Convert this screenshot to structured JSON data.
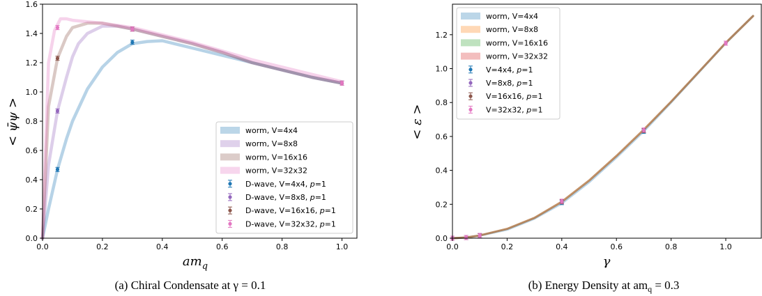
{
  "captions": {
    "a": "(a) Chiral Condensate at γ = 0.1",
    "b": "(b) Energy Density at am",
    "b_sub": "q",
    "b_tail": " = 0.3"
  },
  "chart_data": [
    {
      "type": "line",
      "xlabel": "am",
      "xlabel_sub": "q",
      "ylabel": "< ψ̄ψ >",
      "xlim": [
        0,
        1.05
      ],
      "ylim": [
        0,
        1.6
      ],
      "xticks": [
        "0.0",
        "0.2",
        "0.4",
        "0.6",
        "0.8",
        "1.0"
      ],
      "yticks": [
        "0.0",
        "0.2",
        "0.4",
        "0.6",
        "0.8",
        "1.0",
        "1.2",
        "1.4",
        "1.6"
      ],
      "legend_position": "lower-right",
      "series": [
        {
          "name": "worm, V=4x4",
          "color": "#1f77b4",
          "x": [
            0,
            0.02,
            0.05,
            0.08,
            0.1,
            0.15,
            0.2,
            0.25,
            0.3,
            0.35,
            0.4,
            0.5,
            0.6,
            0.7,
            0.8,
            0.9,
            1.0
          ],
          "y": [
            0,
            0.2,
            0.47,
            0.68,
            0.8,
            1.02,
            1.17,
            1.27,
            1.33,
            1.345,
            1.35,
            1.3,
            1.25,
            1.2,
            1.15,
            1.1,
            1.06
          ]
        },
        {
          "name": "worm, V=8x8",
          "color": "#9467bd",
          "x": [
            0,
            0.02,
            0.05,
            0.08,
            0.1,
            0.12,
            0.15,
            0.2,
            0.25,
            0.3,
            0.4,
            0.5,
            0.6,
            0.7,
            0.8,
            0.9,
            1.0
          ],
          "y": [
            0,
            0.5,
            0.87,
            1.1,
            1.24,
            1.33,
            1.4,
            1.45,
            1.45,
            1.43,
            1.38,
            1.33,
            1.27,
            1.2,
            1.15,
            1.1,
            1.06
          ]
        },
        {
          "name": "worm, V=16x16",
          "color": "#8c564b",
          "x": [
            0,
            0.02,
            0.05,
            0.08,
            0.1,
            0.15,
            0.2,
            0.3,
            0.4,
            0.5,
            0.6,
            0.7,
            0.8,
            0.9,
            1.0
          ],
          "y": [
            0,
            0.9,
            1.23,
            1.38,
            1.44,
            1.47,
            1.47,
            1.43,
            1.38,
            1.33,
            1.27,
            1.2,
            1.15,
            1.1,
            1.06
          ]
        },
        {
          "name": "worm, V=32x32",
          "color": "#e377c2",
          "x": [
            0,
            0.02,
            0.04,
            0.06,
            0.08,
            0.1,
            0.15,
            0.2,
            0.3,
            0.4,
            0.5,
            0.6,
            0.7,
            0.8,
            0.9,
            1.0
          ],
          "y": [
            0,
            1.2,
            1.42,
            1.5,
            1.5,
            1.49,
            1.48,
            1.47,
            1.44,
            1.39,
            1.34,
            1.28,
            1.22,
            1.17,
            1.12,
            1.07
          ]
        }
      ],
      "points": [
        {
          "name": "D-wave, V=4x4, p=1",
          "color": "#1f77b4",
          "marker": "circle",
          "data": [
            [
              0.05,
              0.47
            ],
            [
              0.3,
              1.34
            ],
            [
              1.0,
              1.06
            ]
          ]
        },
        {
          "name": "D-wave, V=8x8, p=1",
          "color": "#9467bd",
          "marker": "circle",
          "data": [
            [
              0.05,
              0.87
            ],
            [
              0.3,
              1.43
            ],
            [
              1.0,
              1.06
            ]
          ]
        },
        {
          "name": "D-wave, V=16x16, p=1",
          "color": "#8c564b",
          "marker": "circle",
          "data": [
            [
              0.05,
              1.23
            ],
            [
              0.3,
              1.43
            ],
            [
              1.0,
              1.06
            ]
          ]
        },
        {
          "name": "D-wave, V=32x32, p=1",
          "color": "#e377c2",
          "marker": "circle",
          "data": [
            [
              0.05,
              1.44
            ],
            [
              0.3,
              1.43
            ],
            [
              1.0,
              1.06
            ]
          ]
        }
      ]
    },
    {
      "type": "line",
      "xlabel": "γ",
      "ylabel": "< ε >",
      "xlim": [
        0,
        1.13
      ],
      "ylim": [
        0,
        1.38
      ],
      "xticks": [
        "0.0",
        "0.2",
        "0.4",
        "0.6",
        "0.8",
        "1.0"
      ],
      "yticks": [
        "0.0",
        "0.2",
        "0.4",
        "0.6",
        "0.8",
        "1.0",
        "1.2"
      ],
      "legend_position": "upper-left",
      "series": [
        {
          "name": "worm, V=4x4",
          "color": "#1f77b4",
          "x": [
            0,
            0.05,
            0.1,
            0.2,
            0.3,
            0.4,
            0.5,
            0.6,
            0.7,
            0.8,
            0.9,
            1.0,
            1.1
          ],
          "y": [
            0,
            0.004,
            0.015,
            0.05,
            0.115,
            0.205,
            0.33,
            0.475,
            0.63,
            0.8,
            0.975,
            1.15,
            1.31
          ]
        },
        {
          "name": "worm, V=8x8",
          "color": "#ff7f0e",
          "x": [
            0,
            0.05,
            0.1,
            0.2,
            0.3,
            0.4,
            0.5,
            0.6,
            0.7,
            0.8,
            0.9,
            1.0,
            1.1
          ],
          "y": [
            0,
            0.004,
            0.016,
            0.055,
            0.12,
            0.215,
            0.34,
            0.485,
            0.64,
            0.805,
            0.978,
            1.152,
            1.31
          ]
        },
        {
          "name": "worm, V=16x16",
          "color": "#2ca02c",
          "x": [
            0,
            0.05,
            0.1,
            0.2,
            0.3,
            0.4,
            0.5,
            0.6,
            0.7,
            0.8,
            0.9,
            1.0,
            1.1
          ],
          "y": [
            0,
            0.004,
            0.016,
            0.055,
            0.12,
            0.215,
            0.34,
            0.485,
            0.64,
            0.805,
            0.978,
            1.152,
            1.31
          ]
        },
        {
          "name": "worm, V=32x32",
          "color": "#d62728",
          "x": [
            0,
            0.05,
            0.1,
            0.2,
            0.3,
            0.4,
            0.5,
            0.6,
            0.7,
            0.8,
            0.9,
            1.0,
            1.1
          ],
          "y": [
            0,
            0.004,
            0.016,
            0.055,
            0.12,
            0.215,
            0.34,
            0.485,
            0.64,
            0.805,
            0.978,
            1.152,
            1.31
          ]
        }
      ],
      "points": [
        {
          "name": "V=4x4, p=1",
          "color": "#1f77b4",
          "marker": "circle",
          "data": [
            [
              0,
              0
            ],
            [
              0.05,
              0.004
            ],
            [
              0.1,
              0.015
            ],
            [
              0.4,
              0.21
            ],
            [
              0.7,
              0.63
            ],
            [
              1.0,
              1.15
            ]
          ]
        },
        {
          "name": "V=8x8, p=1",
          "color": "#9467bd",
          "marker": "circle",
          "data": [
            [
              0,
              0
            ],
            [
              0.05,
              0.004
            ],
            [
              0.1,
              0.015
            ],
            [
              0.4,
              0.215
            ],
            [
              0.7,
              0.635
            ],
            [
              1.0,
              1.15
            ]
          ]
        },
        {
          "name": "V=16x16, p=1",
          "color": "#8c564b",
          "marker": "circle",
          "data": [
            [
              0,
              0
            ],
            [
              0.05,
              0.004
            ],
            [
              0.1,
              0.015
            ],
            [
              0.4,
              0.215
            ],
            [
              0.7,
              0.635
            ],
            [
              1.0,
              1.15
            ]
          ]
        },
        {
          "name": "V=32x32, p=1",
          "color": "#e377c2",
          "marker": "circle",
          "data": [
            [
              0,
              0
            ],
            [
              0.05,
              0.004
            ],
            [
              0.1,
              0.016
            ],
            [
              0.4,
              0.218
            ],
            [
              0.7,
              0.638
            ],
            [
              1.0,
              1.15
            ]
          ]
        }
      ]
    }
  ]
}
